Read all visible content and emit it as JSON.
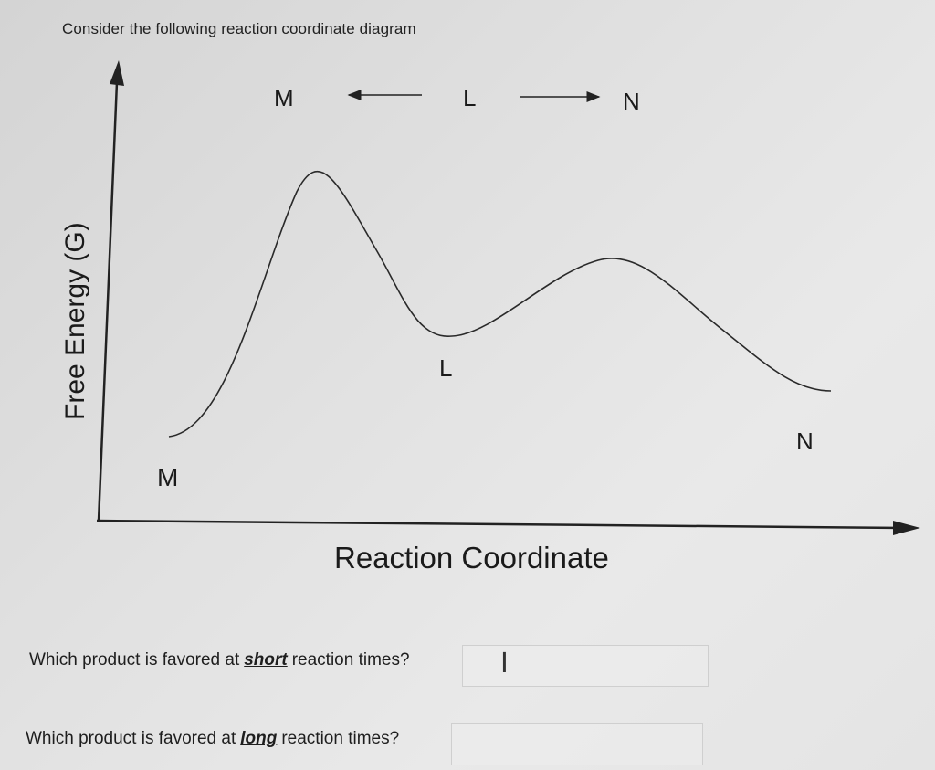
{
  "header": {
    "title": "Consider the following reaction coordinate diagram"
  },
  "scheme": {
    "left": "M",
    "center": "L",
    "right": "N"
  },
  "diagram": {
    "ylabel": "Free Energy (G)",
    "xlabel": "Reaction Coordinate",
    "point_labels": {
      "start": "M",
      "intermediate": "L",
      "end": "N"
    }
  },
  "questions": [
    {
      "before": "Which product is favored at",
      "keyword": "short",
      "after": "reaction times?",
      "answer": ""
    },
    {
      "before": "Which product is favored at",
      "keyword": "long",
      "after": "reaction times?",
      "answer": ""
    }
  ]
}
